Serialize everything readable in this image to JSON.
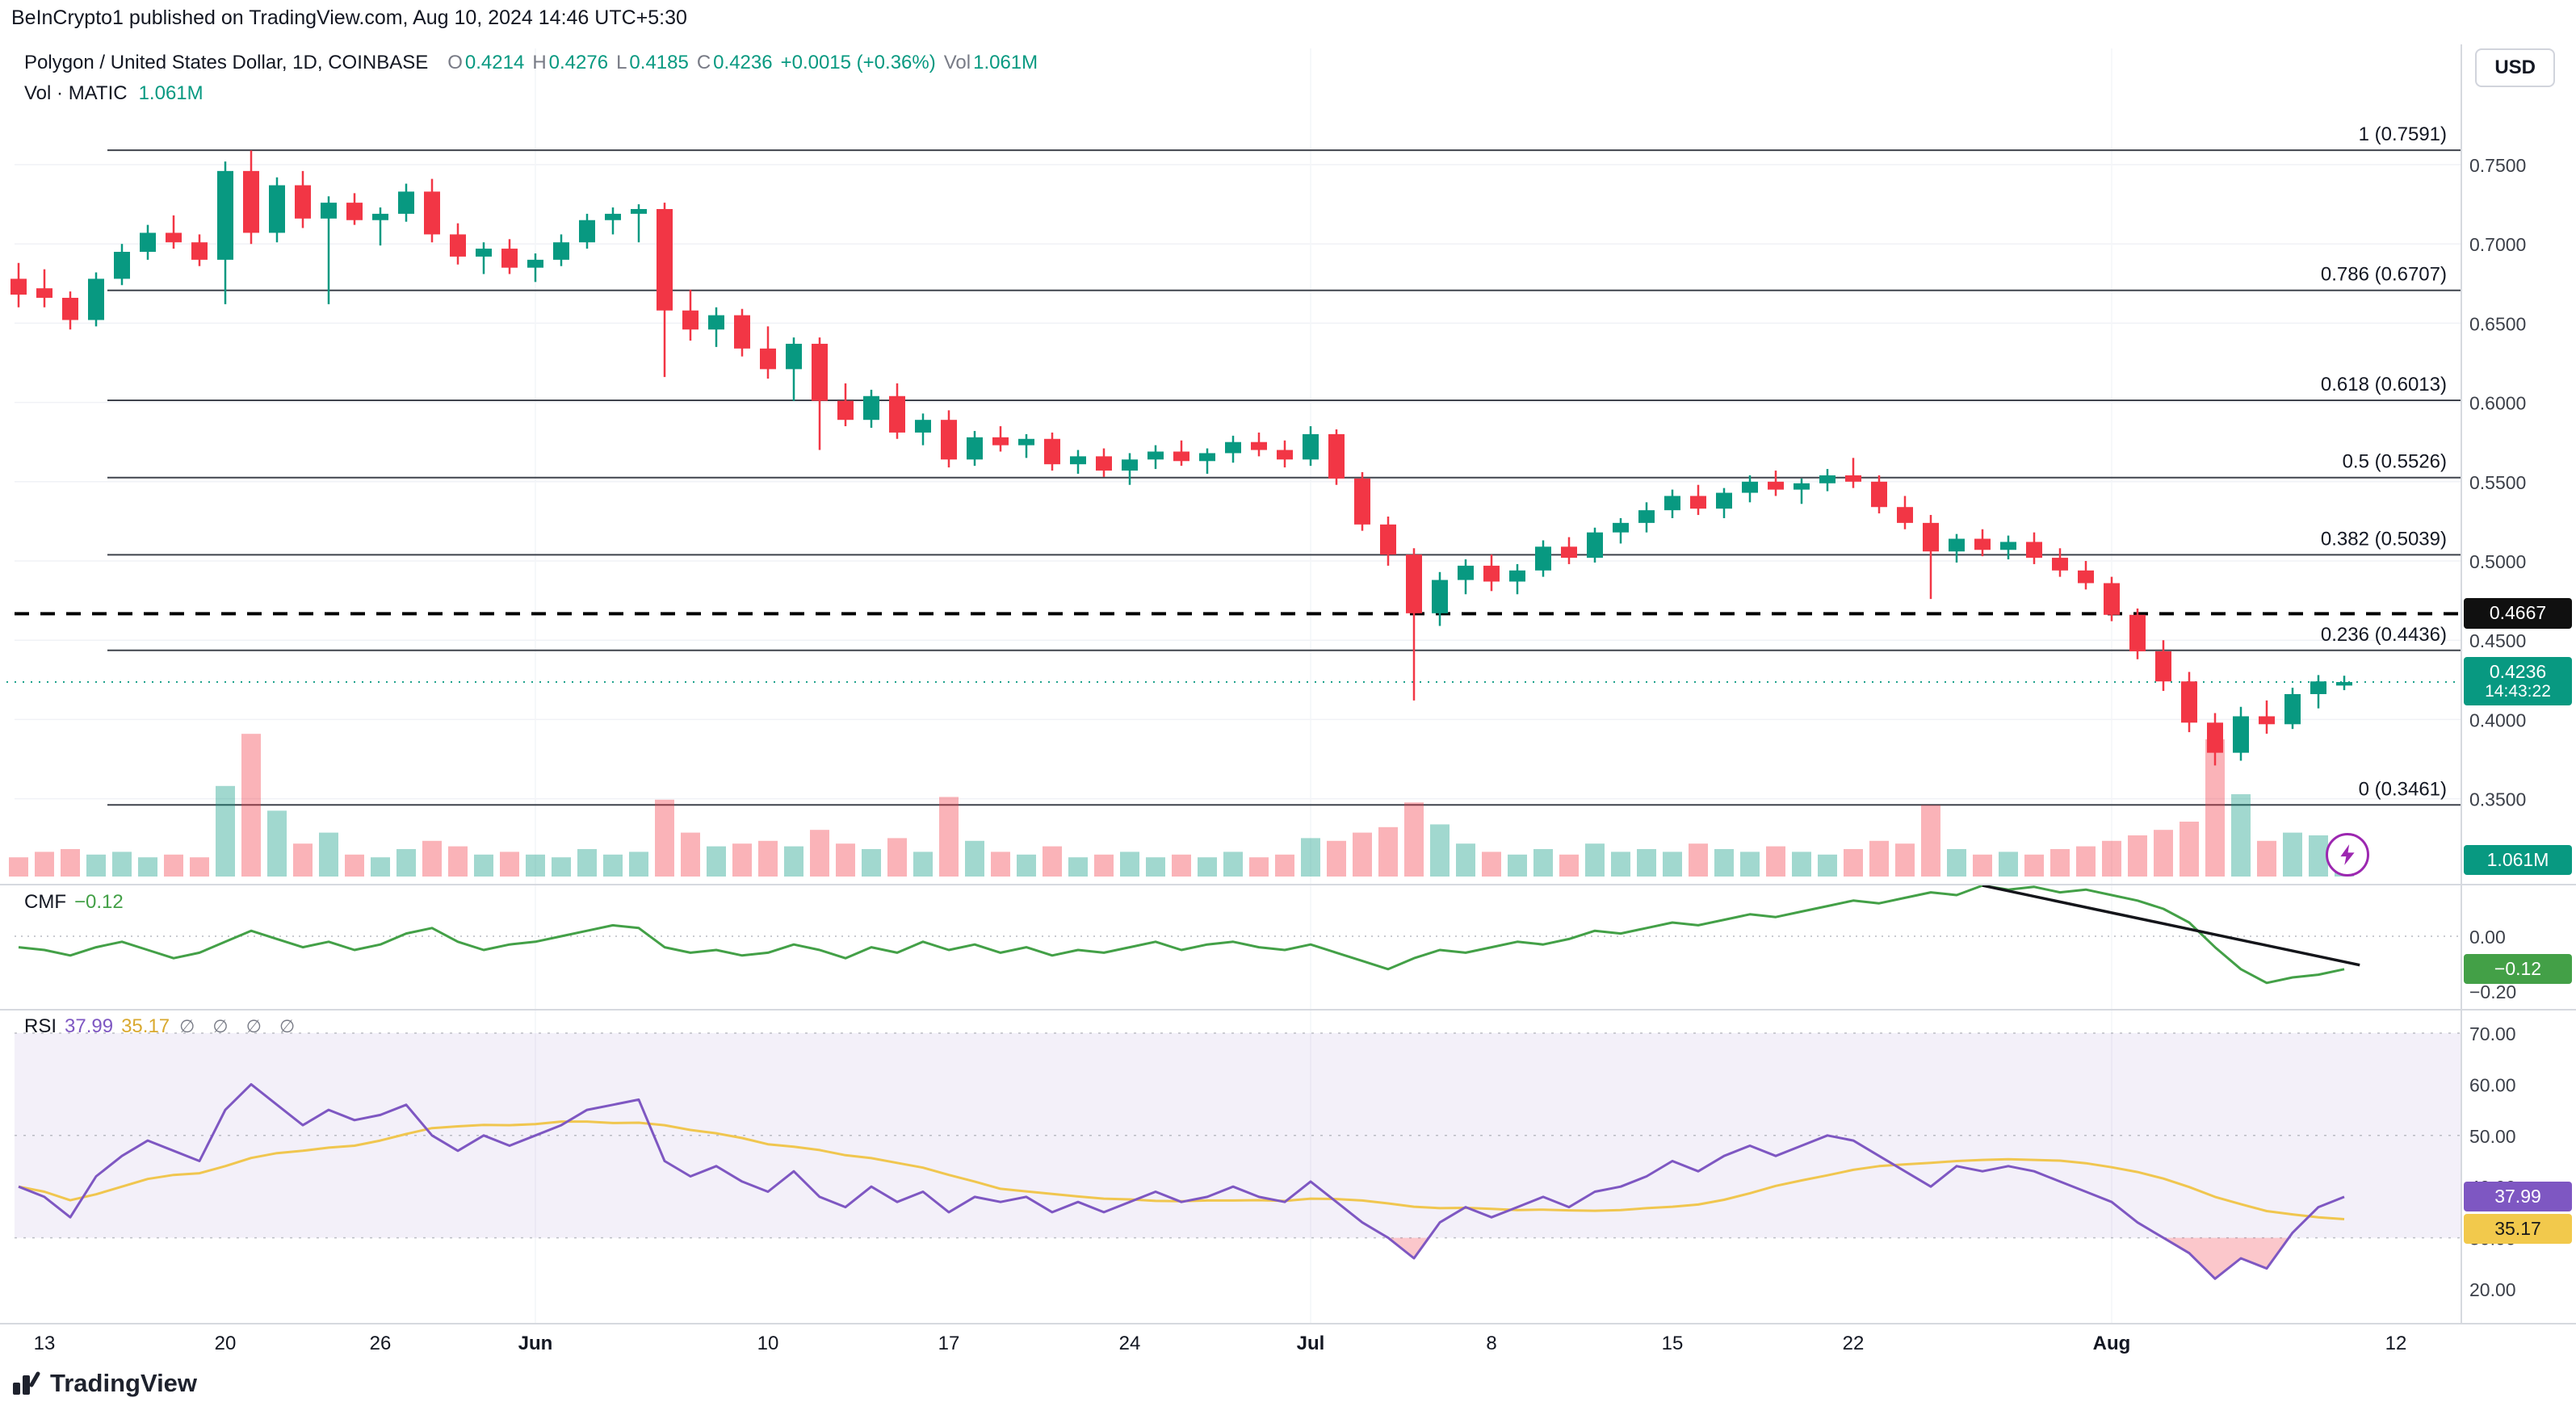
{
  "header": {
    "published": "BeInCrypto1 published on TradingView.com, Aug 10, 2024 14:46 UTC+5:30"
  },
  "toolbar": {
    "currency_button": "USD"
  },
  "legend": {
    "symbol": "Polygon / United States Dollar, 1D, COINBASE",
    "o_label": "O",
    "o": "0.4214",
    "h_label": "H",
    "h": "0.4276",
    "l_label": "L",
    "l": "0.4185",
    "c_label": "C",
    "c": "0.4236",
    "change": "+0.0015 (+0.36%)",
    "vol_label": "Vol",
    "vol": "1.061M"
  },
  "legend2": {
    "title": "Vol · MATIC",
    "value": "1.061M"
  },
  "cmf_legend": {
    "label": "CMF",
    "value": "−0.12"
  },
  "rsi_legend": {
    "label": "RSI",
    "v1": "37.99",
    "v2": "35.17",
    "empties": "∅ ∅ ∅ ∅"
  },
  "tags": {
    "threshold": "0.4667",
    "last_price": "0.4236",
    "countdown": "14:43:22",
    "volume": "1.061M",
    "cmf": "−0.12",
    "rsi": "37.99",
    "rsi_ma": "35.17"
  },
  "footer": {
    "logo_text": "TradingView"
  },
  "colors": {
    "up": "#089981",
    "down": "#f23645",
    "accent": "#089981",
    "cmf_line": "#43a047",
    "rsi_line": "#7e57c2",
    "rsi_ma": "#f0c64f",
    "rsi_band": "rgba(126,87,194,0.09)",
    "oversold_fill": "rgba(242,54,69,0.28)",
    "fib_line": "#3f434c",
    "threshold_line": "#000000"
  },
  "chart_data": {
    "type": "candlestick",
    "title": "Polygon / United States Dollar, 1D, COINBASE",
    "price_axis_ticks": [
      {
        "label": "0.7500",
        "v": 0.75
      },
      {
        "label": "0.7000",
        "v": 0.7
      },
      {
        "label": "0.6500",
        "v": 0.65
      },
      {
        "label": "0.6000",
        "v": 0.6
      },
      {
        "label": "0.5500",
        "v": 0.55
      },
      {
        "label": "0.5000",
        "v": 0.5
      },
      {
        "label": "0.4500",
        "v": 0.45
      },
      {
        "label": "0.4000",
        "v": 0.4
      },
      {
        "label": "0.3500",
        "v": 0.35
      }
    ],
    "fib_levels": [
      {
        "label": "1 (0.7591)",
        "value": 0.7591
      },
      {
        "label": "0.786 (0.6707)",
        "value": 0.6707
      },
      {
        "label": "0.618 (0.6013)",
        "value": 0.6013
      },
      {
        "label": "0.5 (0.5526)",
        "value": 0.5526
      },
      {
        "label": "0.382 (0.5039)",
        "value": 0.5039
      },
      {
        "label": "0.236 (0.4436)",
        "value": 0.4436
      },
      {
        "label": "0 (0.3461)",
        "value": 0.3461
      }
    ],
    "threshold_line": {
      "value": 0.4667,
      "label": "0.4667"
    },
    "last_price": {
      "value": 0.4236,
      "label": "0.4236",
      "countdown": "14:43:22"
    },
    "time_axis": [
      {
        "label": "13",
        "i": 1
      },
      {
        "label": "20",
        "i": 8
      },
      {
        "label": "26",
        "i": 14
      },
      {
        "label": "Jun",
        "i": 20,
        "major": true
      },
      {
        "label": "10",
        "i": 29
      },
      {
        "label": "17",
        "i": 36
      },
      {
        "label": "24",
        "i": 43
      },
      {
        "label": "Jul",
        "i": 50,
        "major": true
      },
      {
        "label": "8",
        "i": 57
      },
      {
        "label": "15",
        "i": 64
      },
      {
        "label": "22",
        "i": 71
      },
      {
        "label": "Aug",
        "i": 81,
        "major": true
      },
      {
        "label": "12",
        "i": 92
      }
    ],
    "candles": [
      [
        0.678,
        0.688,
        0.66,
        0.668
      ],
      [
        0.672,
        0.684,
        0.66,
        0.666
      ],
      [
        0.666,
        0.67,
        0.646,
        0.652
      ],
      [
        0.652,
        0.682,
        0.648,
        0.678
      ],
      [
        0.678,
        0.7,
        0.674,
        0.695
      ],
      [
        0.695,
        0.712,
        0.69,
        0.707
      ],
      [
        0.707,
        0.718,
        0.697,
        0.701
      ],
      [
        0.701,
        0.706,
        0.686,
        0.69
      ],
      [
        0.69,
        0.752,
        0.662,
        0.746
      ],
      [
        0.746,
        0.759,
        0.7,
        0.707
      ],
      [
        0.707,
        0.742,
        0.701,
        0.737
      ],
      [
        0.737,
        0.746,
        0.71,
        0.716
      ],
      [
        0.716,
        0.73,
        0.662,
        0.726
      ],
      [
        0.726,
        0.732,
        0.712,
        0.715
      ],
      [
        0.715,
        0.723,
        0.699,
        0.719
      ],
      [
        0.719,
        0.738,
        0.714,
        0.733
      ],
      [
        0.733,
        0.741,
        0.701,
        0.706
      ],
      [
        0.706,
        0.713,
        0.687,
        0.692
      ],
      [
        0.692,
        0.701,
        0.681,
        0.697
      ],
      [
        0.697,
        0.703,
        0.681,
        0.685
      ],
      [
        0.685,
        0.694,
        0.676,
        0.69
      ],
      [
        0.69,
        0.706,
        0.686,
        0.701
      ],
      [
        0.701,
        0.719,
        0.697,
        0.715
      ],
      [
        0.715,
        0.723,
        0.706,
        0.719
      ],
      [
        0.719,
        0.725,
        0.701,
        0.722
      ],
      [
        0.722,
        0.726,
        0.616,
        0.658
      ],
      [
        0.658,
        0.671,
        0.639,
        0.646
      ],
      [
        0.646,
        0.66,
        0.635,
        0.655
      ],
      [
        0.655,
        0.659,
        0.629,
        0.634
      ],
      [
        0.634,
        0.648,
        0.615,
        0.621
      ],
      [
        0.621,
        0.641,
        0.601,
        0.637
      ],
      [
        0.637,
        0.641,
        0.57,
        0.601
      ],
      [
        0.601,
        0.612,
        0.585,
        0.589
      ],
      [
        0.589,
        0.608,
        0.584,
        0.604
      ],
      [
        0.604,
        0.612,
        0.577,
        0.581
      ],
      [
        0.581,
        0.593,
        0.573,
        0.589
      ],
      [
        0.589,
        0.595,
        0.559,
        0.564
      ],
      [
        0.564,
        0.582,
        0.56,
        0.578
      ],
      [
        0.578,
        0.585,
        0.569,
        0.573
      ],
      [
        0.573,
        0.58,
        0.565,
        0.577
      ],
      [
        0.577,
        0.581,
        0.557,
        0.561
      ],
      [
        0.561,
        0.57,
        0.555,
        0.566
      ],
      [
        0.566,
        0.571,
        0.553,
        0.557
      ],
      [
        0.557,
        0.568,
        0.548,
        0.564
      ],
      [
        0.564,
        0.573,
        0.558,
        0.569
      ],
      [
        0.569,
        0.576,
        0.56,
        0.563
      ],
      [
        0.563,
        0.571,
        0.555,
        0.568
      ],
      [
        0.568,
        0.579,
        0.562,
        0.575
      ],
      [
        0.575,
        0.581,
        0.566,
        0.57
      ],
      [
        0.57,
        0.576,
        0.559,
        0.564
      ],
      [
        0.564,
        0.585,
        0.56,
        0.58
      ],
      [
        0.58,
        0.583,
        0.548,
        0.552
      ],
      [
        0.552,
        0.556,
        0.519,
        0.523
      ],
      [
        0.523,
        0.528,
        0.497,
        0.504
      ],
      [
        0.504,
        0.508,
        0.412,
        0.467
      ],
      [
        0.467,
        0.493,
        0.459,
        0.488
      ],
      [
        0.488,
        0.501,
        0.479,
        0.497
      ],
      [
        0.497,
        0.504,
        0.481,
        0.487
      ],
      [
        0.487,
        0.498,
        0.479,
        0.494
      ],
      [
        0.494,
        0.513,
        0.49,
        0.509
      ],
      [
        0.509,
        0.515,
        0.498,
        0.502
      ],
      [
        0.502,
        0.521,
        0.499,
        0.518
      ],
      [
        0.518,
        0.527,
        0.511,
        0.524
      ],
      [
        0.524,
        0.537,
        0.518,
        0.532
      ],
      [
        0.532,
        0.545,
        0.527,
        0.541
      ],
      [
        0.541,
        0.548,
        0.529,
        0.533
      ],
      [
        0.533,
        0.546,
        0.527,
        0.543
      ],
      [
        0.543,
        0.554,
        0.537,
        0.55
      ],
      [
        0.55,
        0.557,
        0.541,
        0.545
      ],
      [
        0.545,
        0.552,
        0.536,
        0.549
      ],
      [
        0.549,
        0.558,
        0.544,
        0.554
      ],
      [
        0.554,
        0.565,
        0.546,
        0.55
      ],
      [
        0.55,
        0.554,
        0.53,
        0.534
      ],
      [
        0.534,
        0.541,
        0.52,
        0.524
      ],
      [
        0.524,
        0.529,
        0.476,
        0.506
      ],
      [
        0.506,
        0.517,
        0.499,
        0.514
      ],
      [
        0.514,
        0.52,
        0.503,
        0.507
      ],
      [
        0.507,
        0.516,
        0.501,
        0.512
      ],
      [
        0.512,
        0.518,
        0.498,
        0.502
      ],
      [
        0.502,
        0.508,
        0.49,
        0.494
      ],
      [
        0.494,
        0.5,
        0.482,
        0.486
      ],
      [
        0.486,
        0.49,
        0.462,
        0.466
      ],
      [
        0.466,
        0.47,
        0.438,
        0.443
      ],
      [
        0.443,
        0.45,
        0.418,
        0.424
      ],
      [
        0.424,
        0.43,
        0.392,
        0.398
      ],
      [
        0.398,
        0.404,
        0.371,
        0.379
      ],
      [
        0.379,
        0.408,
        0.374,
        0.402
      ],
      [
        0.402,
        0.412,
        0.391,
        0.397
      ],
      [
        0.397,
        0.42,
        0.394,
        0.416
      ],
      [
        0.416,
        0.428,
        0.407,
        0.424
      ],
      [
        0.4214,
        0.4276,
        0.4185,
        0.4236
      ]
    ],
    "volume_millions": [
      0.7,
      0.9,
      1.0,
      0.8,
      0.9,
      0.7,
      0.8,
      0.7,
      3.3,
      5.2,
      2.4,
      1.2,
      1.6,
      0.8,
      0.7,
      1.0,
      1.3,
      1.1,
      0.8,
      0.9,
      0.8,
      0.7,
      1.0,
      0.8,
      0.9,
      2.8,
      1.6,
      1.1,
      1.2,
      1.3,
      1.1,
      1.7,
      1.2,
      1.0,
      1.4,
      0.9,
      2.9,
      1.3,
      0.9,
      0.8,
      1.1,
      0.7,
      0.8,
      0.9,
      0.7,
      0.8,
      0.7,
      0.9,
      0.7,
      0.8,
      1.4,
      1.3,
      1.6,
      1.8,
      2.7,
      1.9,
      1.2,
      0.9,
      0.8,
      1.0,
      0.8,
      1.2,
      0.9,
      1.0,
      0.9,
      1.2,
      1.0,
      0.9,
      1.1,
      0.9,
      0.8,
      1.0,
      1.3,
      1.2,
      2.6,
      1.0,
      0.8,
      0.9,
      0.8,
      1.0,
      1.1,
      1.3,
      1.5,
      1.7,
      2.0,
      5.0,
      3.0,
      1.3,
      1.6,
      1.5,
      1.061
    ],
    "volume_current_label": "1.061M",
    "cmf": {
      "label": "CMF",
      "value": -0.12,
      "value_label": "−0.12",
      "axis_ticks": [
        {
          "label": "0.00",
          "v": 0
        },
        {
          "label": "−0.20",
          "v": -0.2
        }
      ],
      "values": [
        -0.04,
        -0.05,
        -0.07,
        -0.04,
        -0.02,
        -0.05,
        -0.08,
        -0.06,
        -0.02,
        0.02,
        -0.01,
        -0.04,
        -0.02,
        -0.05,
        -0.03,
        0.01,
        0.03,
        -0.02,
        -0.05,
        -0.03,
        -0.02,
        0.0,
        0.02,
        0.04,
        0.03,
        -0.04,
        -0.06,
        -0.05,
        -0.07,
        -0.06,
        -0.03,
        -0.05,
        -0.08,
        -0.04,
        -0.06,
        -0.02,
        -0.05,
        -0.03,
        -0.06,
        -0.04,
        -0.07,
        -0.05,
        -0.06,
        -0.04,
        -0.02,
        -0.05,
        -0.03,
        -0.02,
        -0.04,
        -0.05,
        -0.03,
        -0.06,
        -0.09,
        -0.12,
        -0.08,
        -0.05,
        -0.06,
        -0.04,
        -0.02,
        -0.03,
        -0.01,
        0.02,
        0.01,
        0.03,
        0.05,
        0.04,
        0.06,
        0.08,
        0.07,
        0.09,
        0.11,
        0.13,
        0.12,
        0.14,
        0.16,
        0.15,
        0.185,
        0.17,
        0.18,
        0.16,
        0.17,
        0.15,
        0.13,
        0.1,
        0.05,
        -0.04,
        -0.12,
        -0.17,
        -0.15,
        -0.14,
        -0.12
      ],
      "trendline": {
        "i1": 76,
        "v1": 0.185,
        "i2": 90.6,
        "v2": -0.105
      }
    },
    "rsi": {
      "label": "RSI",
      "value": 37.99,
      "ma_value": 35.17,
      "ma_period": 14,
      "band": [
        30,
        70
      ],
      "axis_ticks": [
        {
          "label": "70.00",
          "v": 70
        },
        {
          "label": "60.00",
          "v": 60
        },
        {
          "label": "50.00",
          "v": 50
        },
        {
          "label": "40.00",
          "v": 40
        },
        {
          "label": "30.00",
          "v": 30
        },
        {
          "label": "20.00",
          "v": 20
        }
      ],
      "values": [
        40,
        38,
        34,
        42,
        46,
        49,
        47,
        45,
        55,
        60,
        56,
        52,
        55,
        53,
        54,
        56,
        50,
        47,
        50,
        48,
        50,
        52,
        55,
        56,
        57,
        45,
        42,
        44,
        41,
        39,
        43,
        38,
        36,
        40,
        37,
        39,
        35,
        38,
        37,
        38,
        35,
        37,
        35,
        37,
        39,
        37,
        38,
        40,
        38,
        37,
        41,
        37,
        33,
        30,
        26,
        33,
        36,
        34,
        36,
        38,
        36,
        39,
        40,
        42,
        45,
        43,
        46,
        48,
        46,
        48,
        50,
        49,
        46,
        43,
        40,
        44,
        43,
        44,
        43,
        41,
        39,
        37,
        33,
        30,
        27,
        22,
        26,
        24,
        31,
        36,
        37.99
      ]
    }
  }
}
